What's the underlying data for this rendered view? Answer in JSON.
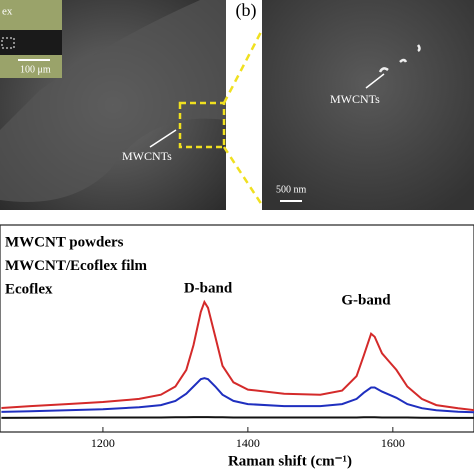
{
  "panels": {
    "inset_label": "ex",
    "inset_scale": "100 μm",
    "left_arrow_label": "MWCNTs",
    "panel_label": "(b)",
    "right_arrow_label": "MWCNTs",
    "right_scale": "500 nm"
  },
  "chart_data": {
    "type": "line",
    "xlabel": "Raman shift (cm⁻¹)",
    "annotations": [
      "D-band",
      "G-band"
    ],
    "xlim": [
      1058,
      1712
    ],
    "xticks": [
      1200,
      1400,
      1600
    ],
    "ylim": [
      0,
      100
    ],
    "x": [
      1060,
      1100,
      1150,
      1200,
      1250,
      1280,
      1300,
      1315,
      1325,
      1335,
      1340,
      1345,
      1355,
      1365,
      1380,
      1400,
      1450,
      1500,
      1530,
      1550,
      1560,
      1570,
      1575,
      1585,
      1595,
      1605,
      1620,
      1640,
      1660,
      1690,
      1712
    ],
    "series": [
      {
        "name": "MWCNT powders",
        "color": "#d42a2a",
        "values": [
          11.6,
          12.5,
          13.5,
          14.5,
          16,
          18,
          22,
          30,
          42,
          58,
          62.8,
          60,
          46,
          32,
          24,
          20.5,
          18.5,
          18,
          20,
          27,
          37,
          47.5,
          46,
          38,
          34,
          30,
          22,
          16,
          13,
          11.5,
          10.6
        ]
      },
      {
        "name": "MWCNT/Ecoflex film",
        "color": "#1f2fbf",
        "values": [
          9.7,
          10,
          10.5,
          11,
          12,
          13,
          15,
          18.5,
          22,
          25.5,
          26,
          25.5,
          22,
          18,
          15,
          13.5,
          12.5,
          12.5,
          13.5,
          16,
          19,
          21.5,
          21.5,
          19.5,
          18,
          16.5,
          13.5,
          11.5,
          10.5,
          9.8,
          9.5
        ]
      },
      {
        "name": "Ecoflex",
        "color": "#111111",
        "values": [
          6.8,
          6.9,
          7,
          7,
          7,
          7,
          7.1,
          7.1,
          7.2,
          7.2,
          7.2,
          7.2,
          7.1,
          7.1,
          7,
          7,
          7,
          7,
          7,
          7,
          7.1,
          7.1,
          7.1,
          7,
          7,
          7,
          7,
          6.9,
          6.9,
          6.8,
          6.8
        ]
      }
    ]
  }
}
